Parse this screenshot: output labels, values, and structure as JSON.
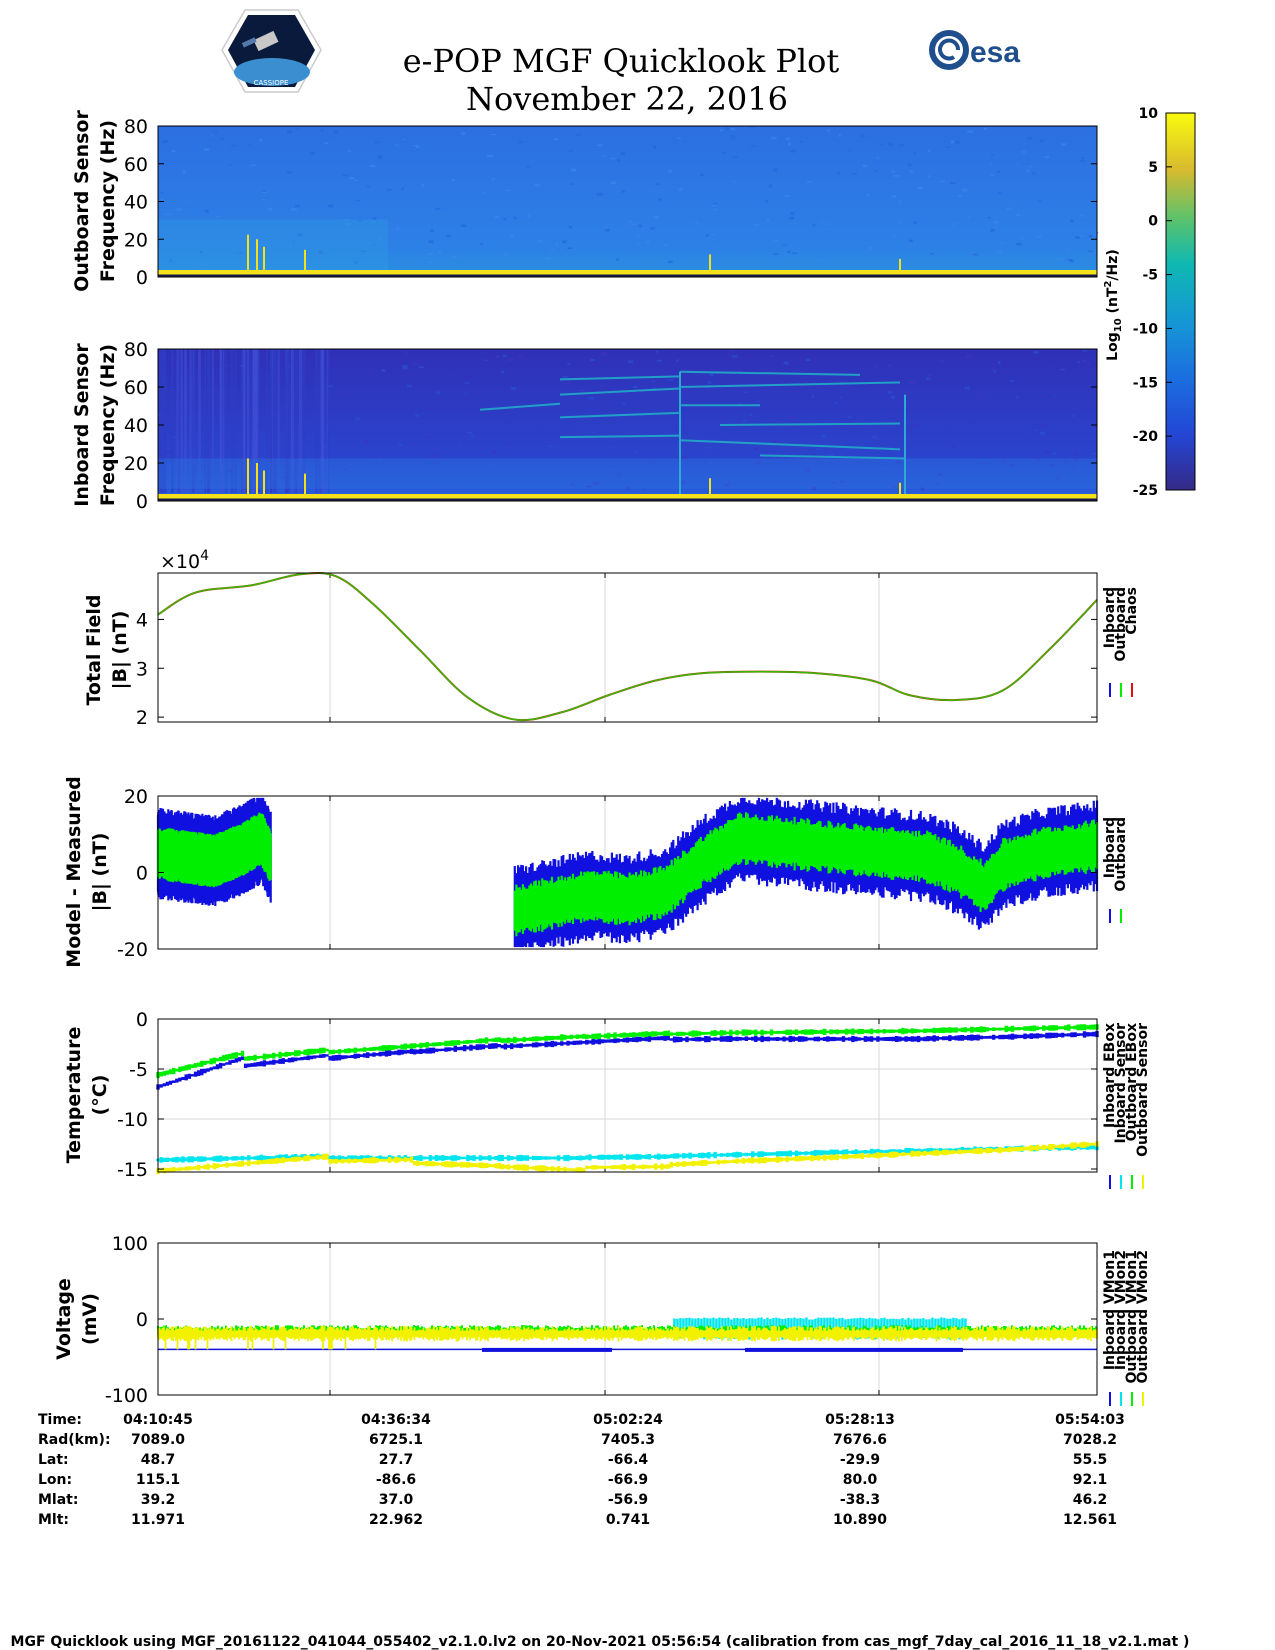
{
  "header": {
    "title": "e-POP MGF Quicklook Plot",
    "date": "November 22, 2016",
    "logo_left": "CASSIOPE",
    "logo_right": "esa"
  },
  "colors": {
    "inboard": "#1010e0",
    "outboard": "#00ee00",
    "chaos": "#e01010",
    "inboard_sensor": "#00e5ee",
    "outboard_sensor": "#f2f200",
    "spectrogram_high": "#f5e11a",
    "spectrogram_low": "#3a2fb0",
    "outboard_bg": "#2f7be8",
    "inboard_bg": "#2a3ec9"
  },
  "chart_data": [
    {
      "type": "heatmap",
      "panel": "outboard_spectrogram",
      "ylabel": [
        "Outboard Sensor",
        "Frequency (Hz)"
      ],
      "ylim": [
        0,
        80
      ],
      "yticks": [
        "80",
        "60",
        "40",
        "20",
        "0"
      ]
    },
    {
      "type": "heatmap",
      "panel": "inboard_spectrogram",
      "ylabel": [
        "Inboard Sensor",
        "Frequency (Hz)"
      ],
      "ylim": [
        0,
        80
      ],
      "yticks": [
        "80",
        "60",
        "40",
        "20",
        "0"
      ]
    },
    {
      "type": "colorbar",
      "label": "Log10 (nT2/Hz)",
      "ticks": [
        "10",
        "5",
        "0",
        "-5",
        "-10",
        "-15",
        "-20",
        "-25"
      ],
      "range": [
        -25,
        10
      ]
    },
    {
      "type": "line",
      "panel": "total_field",
      "ylabel": [
        "Total Field",
        "|B| (nT)"
      ],
      "exponent": "×10",
      "exponent_power": "4",
      "ylim": [
        1.9,
        4.95
      ],
      "yticks": [
        "4",
        "3",
        "2"
      ],
      "legend": [
        "Inboard",
        "Outboard",
        "Chaos"
      ],
      "x": [
        0,
        0.04,
        0.1,
        0.15,
        0.19,
        0.23,
        0.28,
        0.33,
        0.38,
        0.43,
        0.48,
        0.53,
        0.58,
        0.64,
        0.7,
        0.76,
        0.8,
        0.85,
        0.9,
        0.95,
        1.0
      ],
      "series": [
        {
          "name": "Chaos",
          "values": [
            4.1,
            4.55,
            4.7,
            4.92,
            4.88,
            4.3,
            3.35,
            2.4,
            1.95,
            2.1,
            2.45,
            2.75,
            2.9,
            2.93,
            2.9,
            2.75,
            2.45,
            2.35,
            2.55,
            3.4,
            4.4
          ]
        }
      ]
    },
    {
      "type": "line",
      "panel": "model_minus_measured",
      "ylabel": [
        "Model - Measured",
        "|B| (nT)"
      ],
      "ylim": [
        -20,
        20
      ],
      "yticks": [
        "20",
        "0",
        "-20"
      ],
      "legend": [
        "Inboard",
        "Outboard"
      ],
      "segments": [
        {
          "x": [
            0,
            0.03,
            0.06,
            0.09,
            0.11,
            0.12
          ],
          "center": [
            5,
            4,
            3,
            6,
            9,
            4
          ]
        },
        {
          "x": [
            0.38,
            0.42,
            0.46,
            0.5,
            0.54,
            0.58,
            0.62,
            0.66,
            0.7,
            0.74,
            0.78,
            0.82,
            0.85,
            0.88,
            0.9,
            0.94,
            0.97,
            1.0
          ],
          "center": [
            -10,
            -8,
            -6,
            -7,
            -5,
            3,
            9,
            8,
            7,
            6,
            5,
            4,
            1,
            -4,
            2,
            5,
            6,
            7
          ]
        }
      ]
    },
    {
      "type": "line",
      "panel": "temperature",
      "ylabel": [
        "Temperature",
        "(°C)"
      ],
      "ylim": [
        -15.3,
        0
      ],
      "yticks": [
        "0",
        "-5",
        "-10",
        "-15"
      ],
      "legend": [
        "Inboard EBox",
        "Inboard Sensor",
        "Outboard EBox",
        "Outboard Sensor"
      ],
      "x": [
        0,
        0.05,
        0.1,
        0.2,
        0.3,
        0.4,
        0.5,
        0.6,
        0.7,
        0.8,
        0.9,
        1.0
      ],
      "series": [
        {
          "name": "Inboard EBox",
          "values": [
            -6.8,
            -5.2,
            -4.6,
            -3.8,
            -3.1,
            -2.6,
            -2.1,
            -2.0,
            -2.0,
            -2.0,
            -1.8,
            -1.5
          ]
        },
        {
          "name": "Inboard Sensor",
          "values": [
            -14.1,
            -14.0,
            -13.9,
            -13.9,
            -13.9,
            -13.9,
            -13.8,
            -13.6,
            -13.4,
            -13.2,
            -13.0,
            -12.8
          ]
        },
        {
          "name": "Outboard EBox",
          "values": [
            -5.6,
            -4.4,
            -3.9,
            -3.2,
            -2.5,
            -2.0,
            -1.6,
            -1.4,
            -1.3,
            -1.2,
            -1.0,
            -0.8
          ]
        },
        {
          "name": "Outboard Sensor",
          "values": [
            -15.2,
            -14.8,
            -14.4,
            -14.2,
            -14.5,
            -14.9,
            -14.8,
            -14.3,
            -13.9,
            -13.5,
            -13.1,
            -12.5
          ]
        }
      ]
    },
    {
      "type": "line",
      "panel": "voltage",
      "ylabel": [
        "Voltage",
        "(mV)"
      ],
      "ylim": [
        -100,
        100
      ],
      "yticks": [
        "100",
        "0",
        "-100"
      ],
      "legend": [
        "Inboard VMon1",
        "Inboard VMon2",
        "Outboard VMon1",
        "Outboard VMon2"
      ],
      "series": [
        {
          "name": "Inboard VMon1",
          "level": -40
        },
        {
          "name": "Inboard VMon2",
          "level": 0,
          "x_range": [
            0.55,
            0.86
          ]
        },
        {
          "name": "Outboard VMon1",
          "level": -15
        },
        {
          "name": "Outboard VMon2",
          "level": -20
        }
      ]
    }
  ],
  "table": {
    "keys": [
      "Time:",
      "Rad(km):",
      "Lat:",
      "Lon:",
      "Mlat:",
      "Mlt:"
    ],
    "columns": [
      [
        "04:10:45",
        "7089.0",
        "48.7",
        "115.1",
        "39.2",
        "11.971"
      ],
      [
        "04:36:34",
        "6725.1",
        "27.7",
        "-86.6",
        "37.0",
        "22.962"
      ],
      [
        "05:02:24",
        "7405.3",
        "-66.4",
        "-66.9",
        "-56.9",
        "0.741"
      ],
      [
        "05:28:13",
        "7676.6",
        "-29.9",
        "80.0",
        "-38.3",
        "10.890"
      ],
      [
        "05:54:03",
        "7028.2",
        "55.5",
        "92.1",
        "46.2",
        "12.561"
      ]
    ]
  },
  "footer": "MGF Quicklook using MGF_20161122_041044_055402_v2.1.0.lv2 on 20-Nov-2021 05:56:54 (calibration from cas_mgf_7day_cal_2016_11_18_v2.1.mat )"
}
